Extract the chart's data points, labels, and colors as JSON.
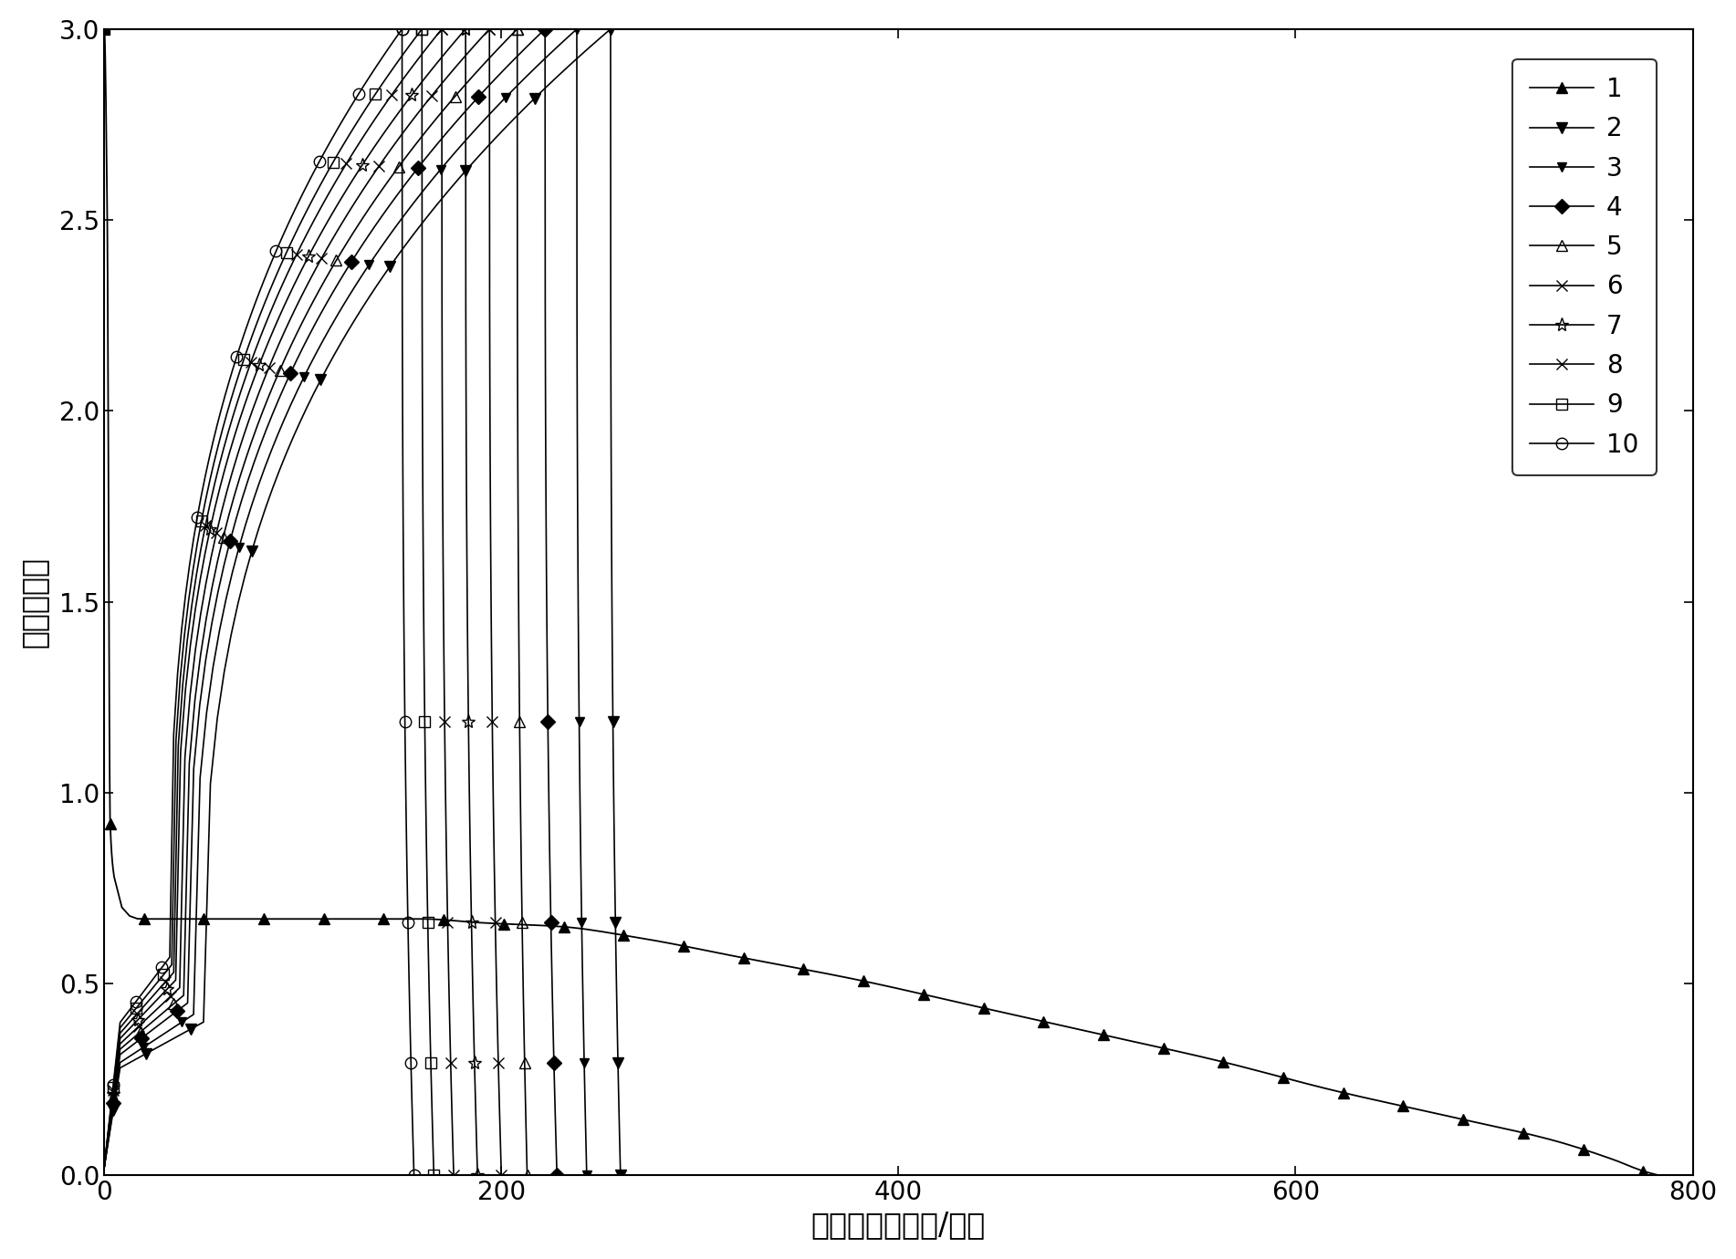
{
  "xlabel": "比容量（毫安时/克）",
  "ylabel": "电压（伏）",
  "xlim": [
    0,
    800
  ],
  "ylim": [
    0,
    3.0
  ],
  "xticks": [
    0,
    200,
    400,
    600,
    800
  ],
  "yticks": [
    0.0,
    0.5,
    1.0,
    1.5,
    2.0,
    2.5,
    3.0
  ],
  "background_color": "#ffffff",
  "series": [
    {
      "label": "1",
      "marker": "^",
      "filled": true,
      "markersize": 9
    },
    {
      "label": "2",
      "marker": "v",
      "filled": true,
      "markersize": 9
    },
    {
      "label": "3",
      "marker": "v",
      "filled": true,
      "markersize": 7
    },
    {
      "label": "4",
      "marker": "D",
      "filled": true,
      "markersize": 8
    },
    {
      "label": "5",
      "marker": "^",
      "filled": false,
      "markersize": 9
    },
    {
      "label": "6",
      "marker": "X",
      "filled": false,
      "markersize": 9
    },
    {
      "label": "7",
      "marker": "*",
      "filled": false,
      "markersize": 11
    },
    {
      "label": "8",
      "marker": "x",
      "filled": false,
      "markersize": 9
    },
    {
      "label": "9",
      "marker": "s",
      "filled": false,
      "markersize": 9
    },
    {
      "label": "10",
      "marker": "o",
      "filled": false,
      "markersize": 9
    }
  ],
  "s1_x": [
    0,
    1.5,
    3,
    5,
    8,
    12,
    18,
    25,
    35,
    50,
    70,
    100,
    130,
    160,
    190,
    230,
    270,
    320,
    380,
    440,
    500,
    560,
    620,
    680,
    730,
    760,
    775,
    782
  ],
  "s1_y": [
    3.0,
    2.52,
    0.92,
    0.78,
    0.71,
    0.68,
    0.67,
    0.67,
    0.67,
    0.67,
    0.67,
    0.67,
    0.67,
    0.67,
    0.66,
    0.65,
    0.62,
    0.57,
    0.51,
    0.44,
    0.37,
    0.3,
    0.22,
    0.15,
    0.09,
    0.04,
    0.01,
    0.0
  ],
  "charge_params": [
    {
      "x_end": 255,
      "y_plat": 0.4,
      "x_plat": 50
    },
    {
      "x_end": 238,
      "y_plat": 0.42,
      "x_plat": 45
    },
    {
      "x_end": 222,
      "y_plat": 0.45,
      "x_plat": 42
    },
    {
      "x_end": 208,
      "y_plat": 0.47,
      "x_plat": 40
    },
    {
      "x_end": 194,
      "y_plat": 0.49,
      "x_plat": 38
    },
    {
      "x_end": 182,
      "y_plat": 0.51,
      "x_plat": 36
    },
    {
      "x_end": 170,
      "y_plat": 0.53,
      "x_plat": 35
    },
    {
      "x_end": 160,
      "y_plat": 0.55,
      "x_plat": 34
    },
    {
      "x_end": 150,
      "y_plat": 0.57,
      "x_plat": 33
    }
  ],
  "discharge_params": [
    {
      "x_end": 260,
      "y_end": 0.0
    },
    {
      "x_end": 243,
      "y_end": 0.0
    },
    {
      "x_end": 228,
      "y_end": 0.0
    },
    {
      "x_end": 213,
      "y_end": 0.0
    },
    {
      "x_end": 200,
      "y_end": 0.0
    },
    {
      "x_end": 188,
      "y_end": 0.0
    },
    {
      "x_end": 176,
      "y_end": 0.0
    },
    {
      "x_end": 166,
      "y_end": 0.0
    },
    {
      "x_end": 156,
      "y_end": 0.0
    }
  ]
}
